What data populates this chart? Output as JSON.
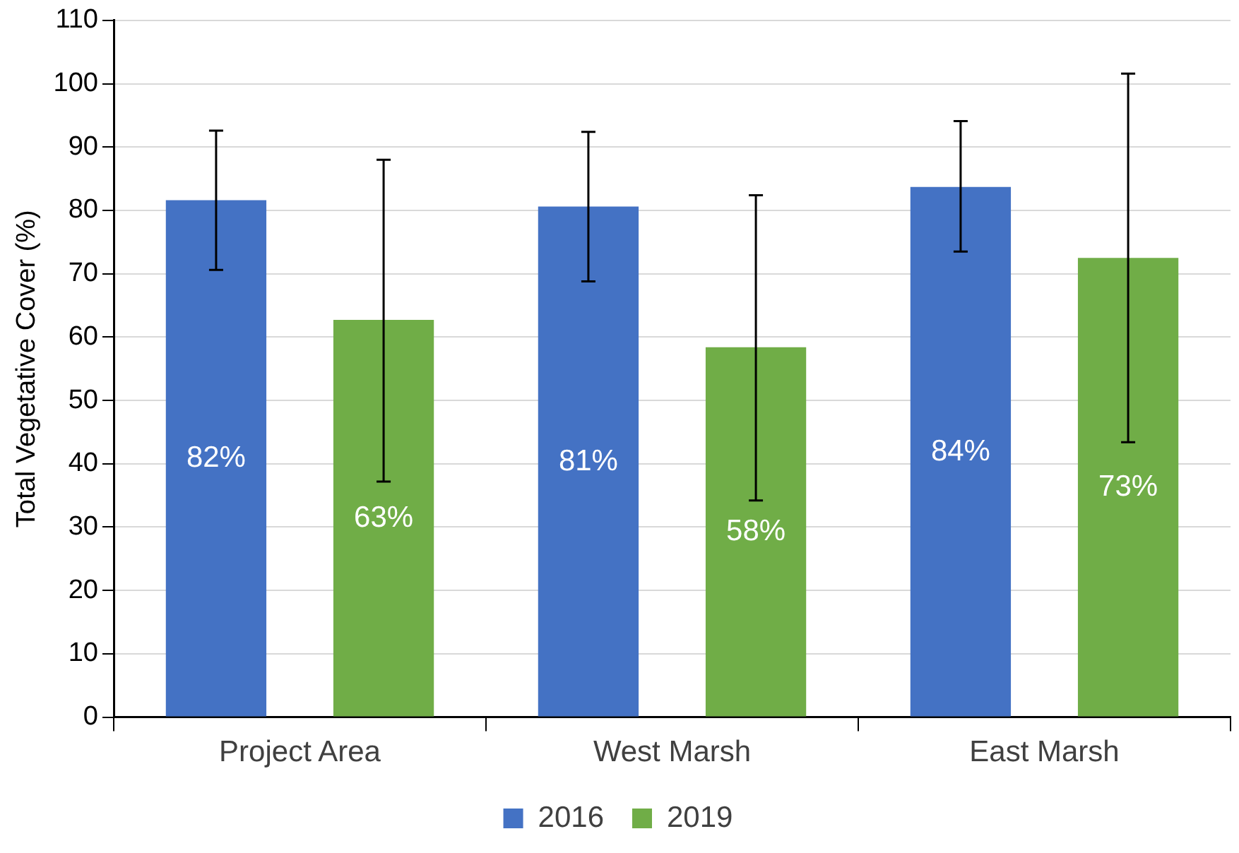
{
  "chart_data": {
    "type": "bar",
    "ylabel": "Total Vegetative Cover (%)",
    "categories": [
      "Project Area",
      "West Marsh",
      "East Marsh"
    ],
    "series": [
      {
        "name": "2016",
        "color": "#4472c4",
        "values": [
          81.6,
          80.6,
          83.7
        ],
        "errors": [
          [
            70.6,
            92.6
          ],
          [
            68.8,
            92.4
          ],
          [
            73.5,
            94.1
          ]
        ],
        "value_labels": [
          "82%",
          "81%",
          "84%"
        ]
      },
      {
        "name": "2019",
        "color": "#70ad47",
        "values": [
          62.7,
          58.4,
          72.5
        ],
        "errors": [
          [
            37.2,
            88
          ],
          [
            34.2,
            82.4
          ],
          [
            43.4,
            101.6
          ]
        ],
        "value_labels": [
          "63%",
          "58%",
          "73%"
        ]
      }
    ],
    "ylim": [
      0,
      110
    ],
    "yticks": [
      0,
      10,
      20,
      30,
      40,
      50,
      60,
      70,
      80,
      90,
      100,
      110
    ],
    "grid": "y",
    "legend": "bottom"
  }
}
